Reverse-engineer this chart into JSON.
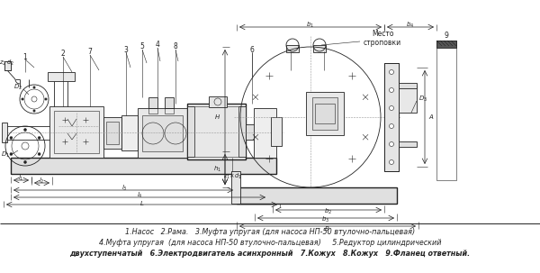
{
  "bg_color": "#ffffff",
  "legend_line1": "1.Насос   2.Рама.   3.Муфта упругая (для насоса НП-50 втулочно-пальцевая)",
  "legend_line2": "4.Муфта упругая  (для насоса НП-50 втулочно-пальцевая)     5.Редуктор цилиндрический",
  "legend_line3": "двухступенчатый   6.Электродвигатель асинхронный   7.Кожух   8.Кожух   9.Фланец ответный.",
  "fig_width": 6.0,
  "fig_height": 3.03,
  "dpi": 100
}
